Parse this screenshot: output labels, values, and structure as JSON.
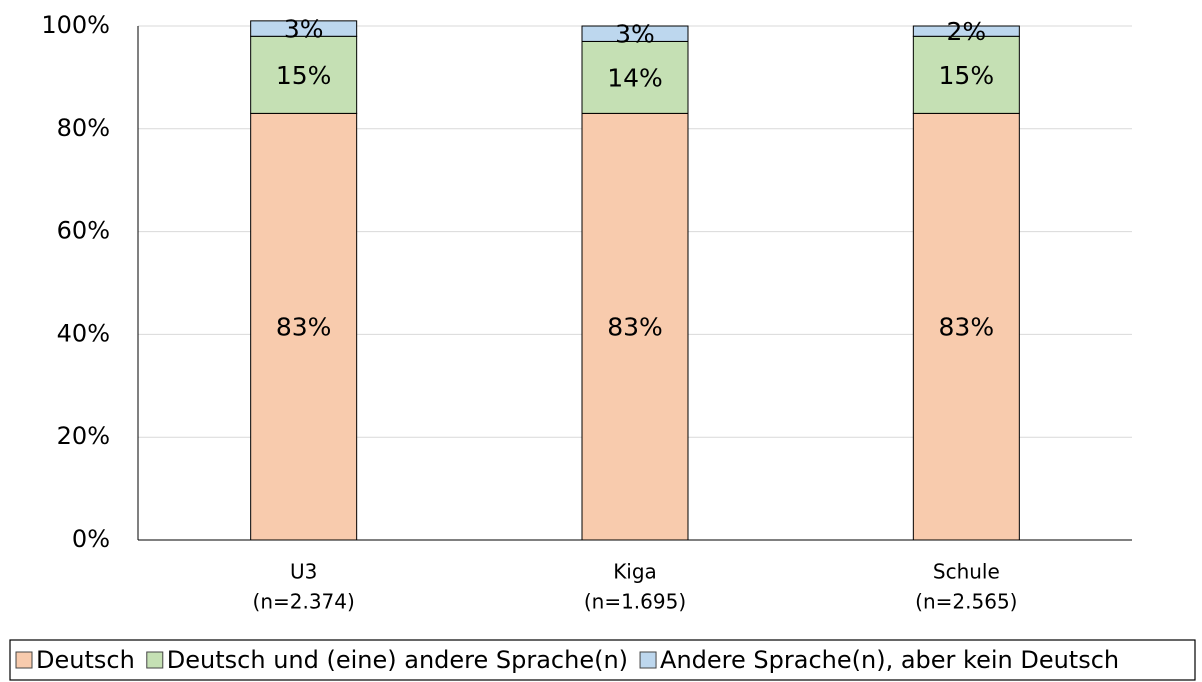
{
  "chart_data": {
    "type": "stacked_bar",
    "categories": [
      [
        "U3",
        "(n=2.374)"
      ],
      [
        "Kiga",
        "(n=1.695)"
      ],
      [
        "Schule",
        "(n=2.565)"
      ]
    ],
    "series": [
      {
        "name": "Deutsch",
        "color": "#f8cbad",
        "values": [
          83,
          83,
          83
        ],
        "value_labels": [
          "83%",
          "83%",
          "83%"
        ]
      },
      {
        "name": "Deutsch und (eine) andere Sprache(n)",
        "color": "#c5e0b4",
        "values": [
          15,
          14,
          15
        ],
        "value_labels": [
          "15%",
          "14%",
          "15%"
        ]
      },
      {
        "name": "Andere Sprache(n), aber kein Deutsch",
        "color": "#bdd7ee",
        "values": [
          3,
          3,
          2
        ],
        "value_labels": [
          "3%",
          "3%",
          "2%"
        ]
      }
    ],
    "ylim": [
      0,
      100
    ],
    "yticks": [
      {
        "value": 0,
        "label": "0%"
      },
      {
        "value": 20,
        "label": "20%"
      },
      {
        "value": 40,
        "label": "40%"
      },
      {
        "value": 60,
        "label": "60%"
      },
      {
        "value": 80,
        "label": "80%"
      },
      {
        "value": 100,
        "label": "100%"
      }
    ],
    "grid": true,
    "legend": "bottom"
  }
}
